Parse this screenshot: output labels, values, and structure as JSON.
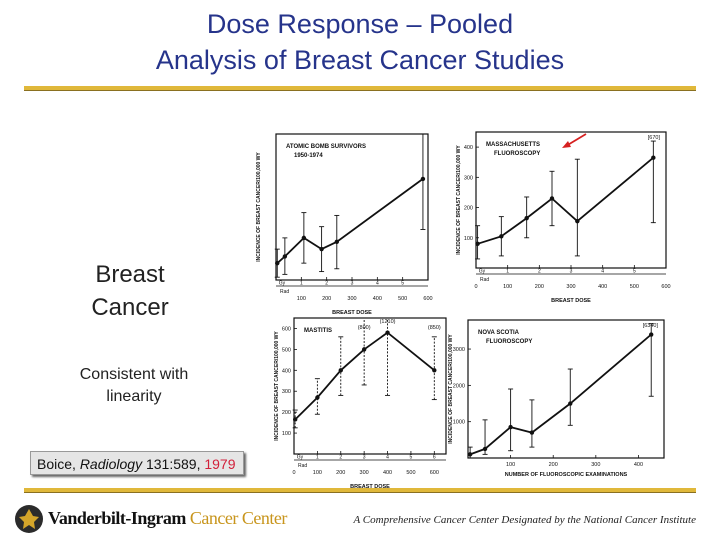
{
  "slide": {
    "title_line1": "Dose Response – Pooled",
    "title_line2": "Analysis of Breast Cancer Studies",
    "left_heading_line1": "Breast",
    "left_heading_line2": "Cancer",
    "left_note_line1": "Consistent with",
    "left_note_line2": "linearity",
    "citation_author": "Boice, ",
    "citation_journal": "Radiology",
    "citation_ref": " 131:589, ",
    "citation_year": "1979",
    "footer_brand_main": "Vanderbilt-Ingram ",
    "footer_brand_accent": "Cancer Center",
    "footer_tagline": "A Comprehensive Cancer Center Designated by the National Cancer Institute"
  },
  "colors": {
    "title": "#26348b",
    "rule": "#e0b83a",
    "citation_year": "#d2203a",
    "brand_accent": "#c8951c",
    "arrow": "#d62020"
  },
  "chart_data": [
    {
      "type": "line",
      "panel": "top-left",
      "title": "ATOMIC BOMB SURVIVORS",
      "subtitle": "1950-1974",
      "xlabel": "BREAST DOSE",
      "ylabel": "INCIDENCE OF BREAST CANCER/100,000 WY",
      "xlim": [
        0,
        600
      ],
      "ylim": [
        0,
        260
      ],
      "xticks": [
        "100",
        "200",
        "300",
        "400",
        "500",
        "600"
      ],
      "group_labels": [
        "Gy",
        "1",
        "2",
        "3",
        "4",
        "5"
      ],
      "unit_label": "Rad",
      "x": [
        5,
        35,
        110,
        180,
        240,
        580
      ],
      "y": [
        30,
        42,
        75,
        55,
        68,
        180
      ],
      "err_low": [
        5,
        10,
        30,
        15,
        20,
        90
      ],
      "err_high": [
        55,
        75,
        120,
        95,
        115,
        260
      ]
    },
    {
      "type": "line",
      "panel": "top-right",
      "title": "MASSACHUSETTS",
      "subtitle": "FLUOROSCOPY",
      "annotation": "[670]",
      "xlabel": "BREAST DOSE",
      "ylabel": "INCIDENCE OF BREAST CANCER/100,000 WY",
      "xlim": [
        0,
        600
      ],
      "ylim": [
        0,
        450
      ],
      "yticks": [
        "100",
        "200",
        "300",
        "400"
      ],
      "xticks": [
        "0",
        "100",
        "200",
        "300",
        "400",
        "500",
        "600"
      ],
      "group_labels": [
        "Gy",
        "1",
        "2",
        "3",
        "4",
        "5"
      ],
      "unit_label": "Rad",
      "x": [
        5,
        80,
        160,
        240,
        320,
        560
      ],
      "y": [
        80,
        105,
        165,
        230,
        155,
        365
      ],
      "err_low": [
        30,
        40,
        100,
        140,
        40,
        150
      ],
      "err_high": [
        140,
        170,
        235,
        320,
        360,
        420
      ]
    },
    {
      "type": "line",
      "panel": "bottom-left",
      "title": "MASTITIS",
      "annotations": [
        "(800)",
        "(1210)",
        "(850)"
      ],
      "xlabel": "BREAST DOSE",
      "ylabel": "INCIDENCE OF BREAST CANCER/100,000 WY",
      "xlim": [
        0,
        650
      ],
      "ylim": [
        0,
        650
      ],
      "yticks": [
        "100",
        "200",
        "300",
        "400",
        "500",
        "600"
      ],
      "xticks": [
        "0",
        "100",
        "200",
        "300",
        "400",
        "500",
        "600"
      ],
      "group_labels": [
        "Gy",
        "1",
        "2",
        "3",
        "4",
        "5",
        "6"
      ],
      "unit_label": "Rad",
      "x": [
        5,
        100,
        200,
        300,
        400,
        600
      ],
      "y": [
        165,
        270,
        400,
        500,
        580,
        400
      ],
      "err_low": [
        125,
        190,
        280,
        330,
        280,
        260
      ],
      "err_high": [
        210,
        360,
        560,
        650,
        650,
        560
      ]
    },
    {
      "type": "line",
      "panel": "bottom-right",
      "title": "NOVA SCOTIA",
      "subtitle": "FLUOROSCOPY",
      "annotation": "[6340]",
      "xlabel": "NUMBER OF FLUOROSCOPIC EXAMINATIONS",
      "ylabel": "INCIDENCE OF BREAST CANCER/100,000 WY",
      "xlim": [
        0,
        460
      ],
      "ylim": [
        0,
        3800
      ],
      "yticks": [
        "1000",
        "2000",
        "3000"
      ],
      "xticks": [
        "100",
        "200",
        "300",
        "400"
      ],
      "x": [
        5,
        40,
        100,
        150,
        240,
        430
      ],
      "y": [
        100,
        250,
        850,
        700,
        1500,
        3400
      ],
      "err_low": [
        0,
        100,
        200,
        300,
        900,
        1700
      ],
      "err_high": [
        300,
        1050,
        1900,
        1600,
        2450,
        3700
      ]
    }
  ]
}
